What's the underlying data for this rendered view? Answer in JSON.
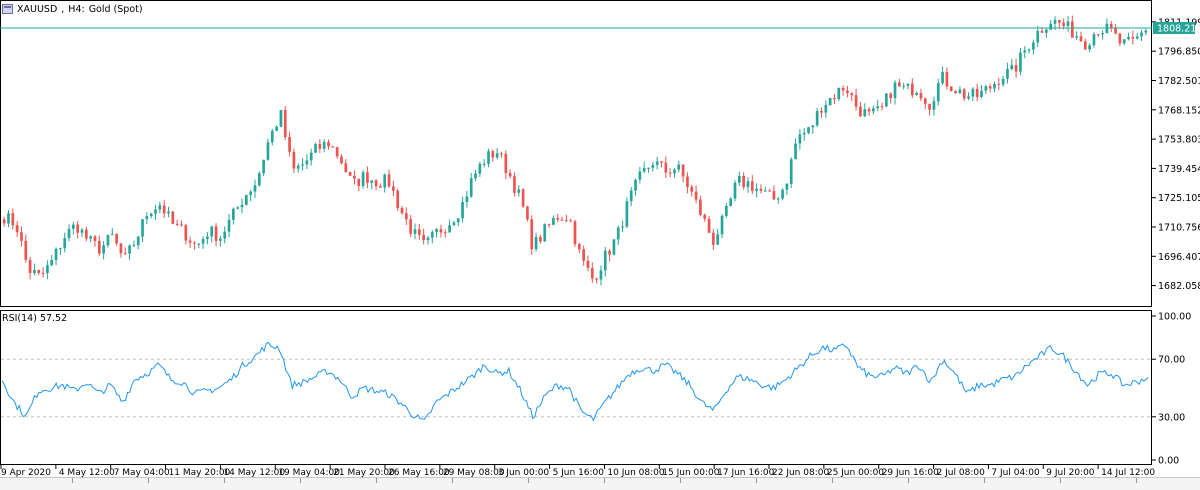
{
  "window": {
    "symbol": "XAUUSD",
    "timeframe": "H4:",
    "description": "Gold (Spot)",
    "icon": "chart-window-icon"
  },
  "current_price": "1808.210",
  "indicator": {
    "label": "RSI(14) 57.52"
  },
  "colors": {
    "bull": "#26a69a",
    "bear": "#ef5350",
    "rsi": "#2196f3",
    "price_line": "#26a69a",
    "grid": "#c0c0c0"
  },
  "chart_data": [
    {
      "type": "candlestick",
      "title": "",
      "price_axis_ticks": [
        "1811.199",
        "1796.850",
        "1782.501",
        "1768.152",
        "1753.803",
        "1739.454",
        "1725.105",
        "1710.756",
        "1696.407",
        "1682.058"
      ],
      "ylim": [
        1675,
        1818
      ],
      "time_axis_labels": [
        "9 Apr 2020",
        "4 May 12:00",
        "7 May 04:00",
        "11 May 20:00",
        "14 May 12:00",
        "19 May 04:00",
        "21 May 20:00",
        "26 May 16:00",
        "29 May 08:00",
        "3 Jun 00:00",
        "5 Jun 16:00",
        "10 Jun 08:00",
        "15 Jun 00:00",
        "17 Jun 16:00",
        "22 Jun 08:00",
        "25 Jun 00:00",
        "29 Jun 16:00",
        "2 Jul 08:00",
        "7 Jul 04:00",
        "9 Jul 20:00",
        "14 Jul 12:00"
      ],
      "close_waypoints": [
        1716,
        1712,
        1690,
        1686,
        1694,
        1706,
        1712,
        1704,
        1700,
        1706,
        1694,
        1705,
        1719,
        1722,
        1712,
        1708,
        1701,
        1709,
        1706,
        1716,
        1726,
        1733,
        1753,
        1766,
        1738,
        1742,
        1749,
        1752,
        1744,
        1731,
        1736,
        1733,
        1733,
        1719,
        1708,
        1701,
        1708,
        1713,
        1720,
        1735,
        1744,
        1748,
        1737,
        1724,
        1701,
        1709,
        1716,
        1716,
        1695,
        1685,
        1696,
        1706,
        1724,
        1736,
        1743,
        1738,
        1740,
        1730,
        1717,
        1704,
        1716,
        1733,
        1732,
        1728,
        1724,
        1731,
        1755,
        1758,
        1770,
        1775,
        1780,
        1769,
        1765,
        1768,
        1780,
        1778,
        1779,
        1771,
        1784,
        1779,
        1775,
        1775,
        1779,
        1785,
        1787,
        1798,
        1806,
        1812,
        1810,
        1806,
        1801,
        1808,
        1807,
        1800,
        1801,
        1808
      ]
    },
    {
      "type": "line",
      "title": "",
      "series": [
        {
          "values": [
            56,
            40,
            30,
            48,
            50,
            52,
            48,
            54,
            46,
            52,
            40,
            56,
            60,
            66,
            56,
            54,
            46,
            48,
            50,
            56,
            66,
            72,
            80,
            78,
            52,
            54,
            58,
            62,
            56,
            44,
            50,
            48,
            46,
            40,
            32,
            26,
            40,
            46,
            52,
            58,
            66,
            60,
            62,
            48,
            30,
            44,
            52,
            50,
            34,
            28,
            40,
            50,
            60,
            64,
            62,
            66,
            60,
            52,
            40,
            34,
            48,
            58,
            56,
            52,
            50,
            56,
            64,
            72,
            78,
            76,
            80,
            64,
            58,
            58,
            64,
            60,
            66,
            54,
            70,
            60,
            46,
            52,
            52,
            56,
            58,
            66,
            72,
            78,
            72,
            62,
            52,
            60,
            60,
            52,
            54,
            57.52
          ]
        }
      ],
      "axis_ticks": [
        "100.00",
        "70.00",
        "30.00",
        "0.00"
      ],
      "levels": [
        70,
        30
      ],
      "ylim": [
        0,
        100
      ]
    }
  ]
}
